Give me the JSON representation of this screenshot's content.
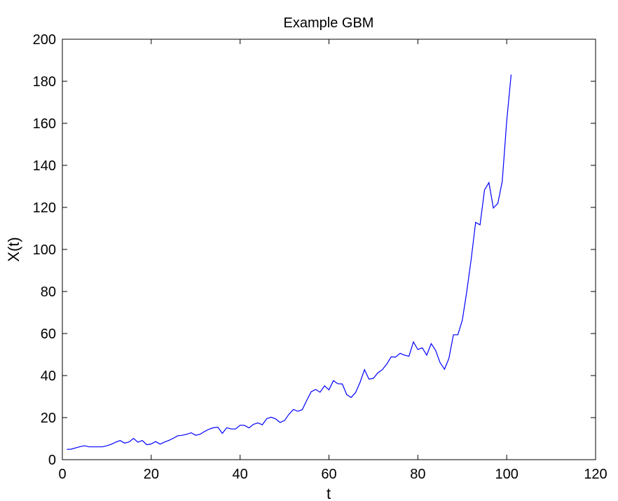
{
  "chart_data": {
    "type": "line",
    "title": "Example GBM",
    "xlabel": "t",
    "ylabel": "X(t)",
    "xlim": [
      0,
      120
    ],
    "ylim": [
      0,
      200
    ],
    "xticks": [
      0,
      20,
      40,
      60,
      80,
      100,
      120
    ],
    "yticks": [
      0,
      20,
      40,
      60,
      80,
      100,
      120,
      140,
      160,
      180,
      200
    ],
    "grid": false,
    "line_color": "#0000ff",
    "series": [
      {
        "x": [
          1,
          2,
          3,
          4,
          5,
          6,
          7,
          8,
          9,
          10,
          11,
          12,
          13,
          14,
          15,
          16,
          17,
          18,
          19,
          20,
          21,
          22,
          23,
          24,
          25,
          26,
          27,
          28,
          29,
          30,
          31,
          32,
          33,
          34,
          35,
          36,
          37,
          38,
          39,
          40,
          41,
          42,
          43,
          44,
          45,
          46,
          47,
          48,
          49,
          50,
          51,
          52,
          53,
          54,
          55,
          56,
          57,
          58,
          59,
          60,
          61,
          62,
          63,
          64,
          65,
          66,
          67,
          68,
          69,
          70,
          71,
          72,
          73,
          74,
          75,
          76,
          77,
          78,
          79,
          80,
          81,
          82,
          83,
          84,
          85,
          86,
          87,
          88,
          89,
          90,
          91,
          92,
          93,
          94,
          95,
          96,
          97,
          98,
          99,
          100,
          101
        ],
        "y": [
          4.9,
          5.0,
          5.6,
          6.2,
          6.6,
          6.1,
          6.1,
          6.1,
          6.1,
          6.6,
          7.3,
          8.3,
          9.1,
          7.9,
          8.4,
          10.1,
          8.3,
          9.1,
          7.1,
          7.5,
          8.6,
          7.4,
          8.4,
          9.2,
          10.2,
          11.4,
          11.6,
          12.1,
          12.8,
          11.6,
          12.1,
          13.4,
          14.5,
          15.2,
          15.4,
          12.5,
          15.2,
          14.6,
          14.6,
          16.4,
          16.3,
          15.1,
          16.8,
          17.5,
          16.6,
          19.5,
          20.2,
          19.4,
          17.7,
          18.6,
          21.6,
          23.9,
          23.0,
          23.8,
          28.2,
          32.3,
          33.4,
          32.1,
          35.1,
          33.2,
          37.6,
          36.1,
          36.0,
          30.9,
          29.6,
          32.0,
          36.8,
          42.8,
          38.3,
          38.7,
          41.3,
          42.8,
          45.4,
          48.9,
          48.8,
          50.6,
          49.7,
          49.2,
          56.0,
          52.4,
          53.2,
          49.7,
          55.2,
          52.0,
          46.2,
          43.0,
          48.2,
          59.4,
          59.4,
          66.3,
          79.8,
          95.2,
          112.9,
          111.7,
          128.3,
          131.8,
          119.7,
          121.9,
          132.4,
          161.2,
          183.2
        ]
      }
    ]
  }
}
